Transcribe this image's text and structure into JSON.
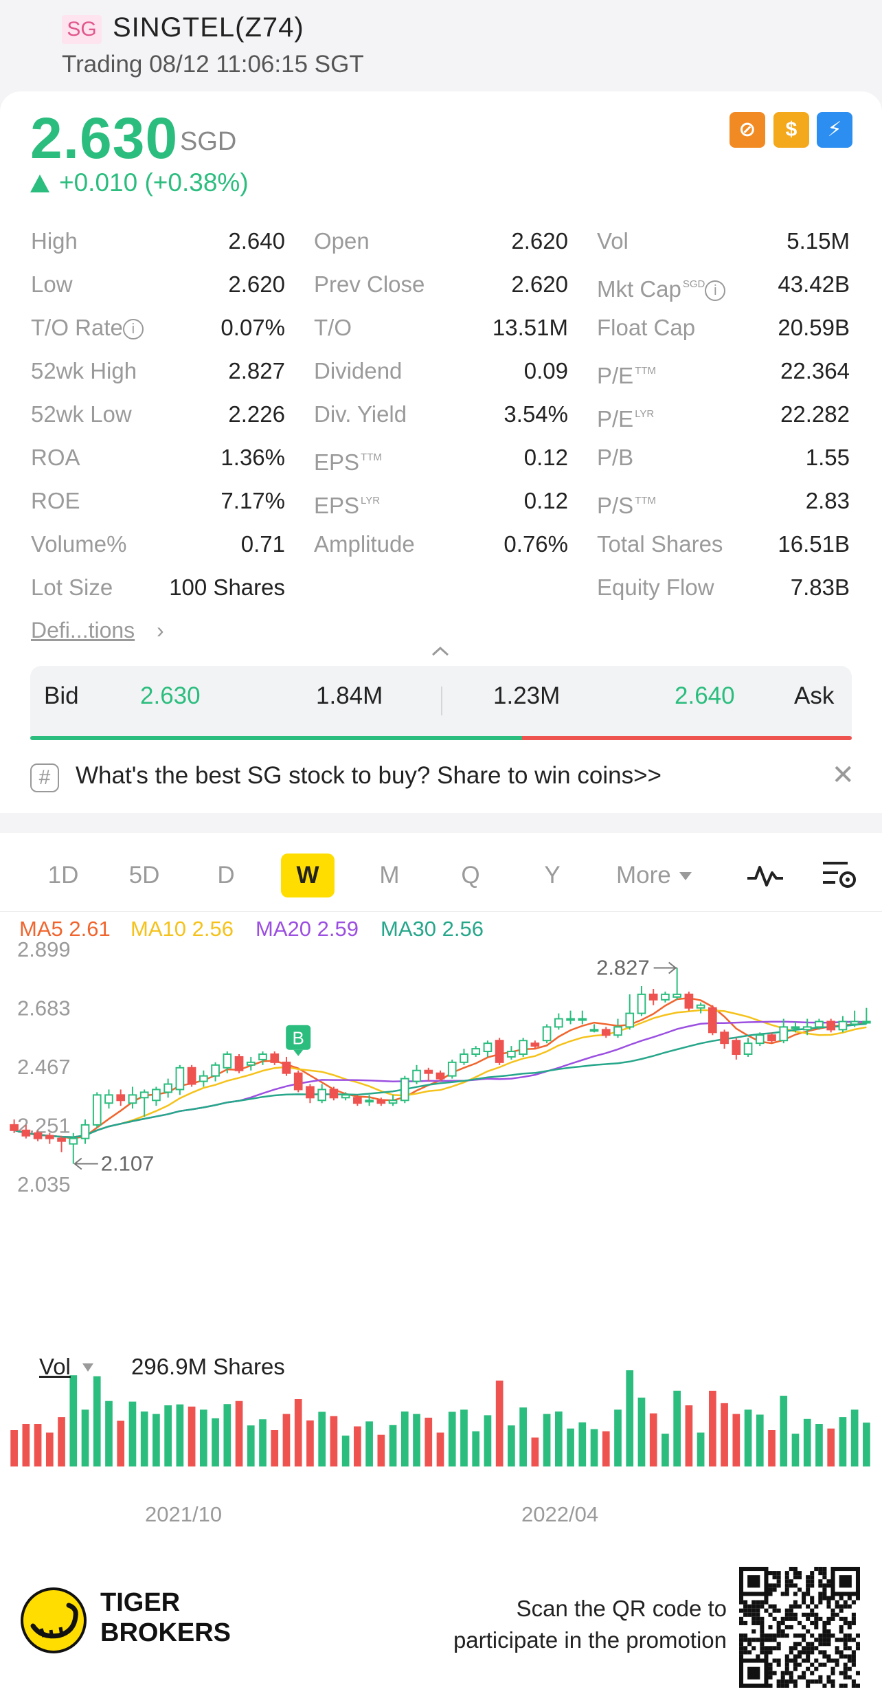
{
  "header": {
    "market_tag": "SG",
    "name": "SINGTEL(Z74)",
    "status": "Trading 08/12 11:06:15 SGT"
  },
  "quote": {
    "price": "2.630",
    "currency": "SGD",
    "change": "+0.010 (+0.38%)",
    "up_color": "#2bbd7e",
    "down_color": "#ee5350"
  },
  "stats": {
    "col1": [
      {
        "label": "High",
        "value": "2.640"
      },
      {
        "label": "Low",
        "value": "2.620"
      },
      {
        "label": "T/O Rate",
        "value": "0.07%"
      },
      {
        "label": "52wk High",
        "value": "2.827"
      },
      {
        "label": "52wk Low",
        "value": "2.226"
      },
      {
        "label": "ROA",
        "value": "1.36%"
      },
      {
        "label": "ROE",
        "value": "7.17%"
      },
      {
        "label": "Volume%",
        "value": "0.71"
      },
      {
        "label": "Lot Size",
        "value": "100 Shares"
      }
    ],
    "col2": [
      {
        "label": "Open",
        "value": "2.620"
      },
      {
        "label": "Prev Close",
        "value": "2.620"
      },
      {
        "label": "T/O",
        "value": "13.51M"
      },
      {
        "label": "Dividend",
        "value": "0.09"
      },
      {
        "label": "Div. Yield",
        "value": "3.54%"
      },
      {
        "label": "EPS",
        "sup": "TTM",
        "value": "0.12"
      },
      {
        "label": "EPS",
        "sup": "LYR",
        "value": "0.12"
      },
      {
        "label": "Amplitude",
        "value": "0.76%"
      }
    ],
    "col3": [
      {
        "label": "Vol",
        "value": "5.15M"
      },
      {
        "label": "Mkt Cap",
        "sup": "SGD",
        "value": "43.42B"
      },
      {
        "label": "Float Cap",
        "value": "20.59B"
      },
      {
        "label": "P/E",
        "sup": "TTM",
        "value": "22.364"
      },
      {
        "label": "P/E",
        "sup": "LYR",
        "value": "22.282"
      },
      {
        "label": "P/B",
        "value": "1.55"
      },
      {
        "label": "P/S",
        "sup": "TTM",
        "value": "2.83"
      },
      {
        "label": "Total Shares",
        "value": "16.51B"
      },
      {
        "label": "Equity Flow",
        "value": "7.83B"
      }
    ],
    "definitions_link": "Defi...tions"
  },
  "bidask": {
    "bid_label": "Bid",
    "bid_price": "2.630",
    "bid_size": "1.84M",
    "ask_size": "1.23M",
    "ask_price": "2.640",
    "ask_label": "Ask"
  },
  "promo": {
    "text": "What's the best SG stock to buy? Share to win coins>>"
  },
  "chart_tabs": {
    "tabs": [
      "1D",
      "5D",
      "D",
      "W",
      "M",
      "Q",
      "Y"
    ],
    "active": "W",
    "more_label": "More"
  },
  "ma_legend": [
    {
      "text": "MA5 2.61",
      "color": "#f0652e"
    },
    {
      "text": "MA10 2.56",
      "color": "#f5c21b"
    },
    {
      "text": "MA20 2.59",
      "color": "#9b4fe0"
    },
    {
      "text": "MA30 2.56",
      "color": "#26a68a"
    }
  ],
  "chart_data": {
    "type": "candlestick",
    "y_axis_labels": [
      "2.899",
      "2.683",
      "2.467",
      "2.251",
      "2.035"
    ],
    "ylim": [
      2.035,
      2.899
    ],
    "x_labels": [
      "2021/10",
      "2022/04"
    ],
    "high_annotation": "2.827",
    "low_annotation": "2.107",
    "marker_label": "B",
    "candles": [
      {
        "o": 2.25,
        "c": 2.23,
        "h": 2.27,
        "l": 2.22
      },
      {
        "o": 2.23,
        "c": 2.21,
        "h": 2.25,
        "l": 2.2
      },
      {
        "o": 2.22,
        "c": 2.2,
        "h": 2.23,
        "l": 2.19
      },
      {
        "o": 2.21,
        "c": 2.2,
        "h": 2.22,
        "l": 2.18
      },
      {
        "o": 2.2,
        "c": 2.19,
        "h": 2.21,
        "l": 2.15
      },
      {
        "o": 2.18,
        "c": 2.2,
        "h": 2.22,
        "l": 2.107
      },
      {
        "o": 2.2,
        "c": 2.25,
        "h": 2.27,
        "l": 2.18
      },
      {
        "o": 2.25,
        "c": 2.36,
        "h": 2.37,
        "l": 2.24
      },
      {
        "o": 2.33,
        "c": 2.36,
        "h": 2.38,
        "l": 2.31
      },
      {
        "o": 2.36,
        "c": 2.34,
        "h": 2.38,
        "l": 2.32
      },
      {
        "o": 2.33,
        "c": 2.36,
        "h": 2.39,
        "l": 2.31
      },
      {
        "o": 2.35,
        "c": 2.37,
        "h": 2.38,
        "l": 2.28
      },
      {
        "o": 2.34,
        "c": 2.38,
        "h": 2.39,
        "l": 2.32
      },
      {
        "o": 2.37,
        "c": 2.4,
        "h": 2.42,
        "l": 2.35
      },
      {
        "o": 2.38,
        "c": 2.46,
        "h": 2.47,
        "l": 2.36
      },
      {
        "o": 2.46,
        "c": 2.4,
        "h": 2.47,
        "l": 2.39
      },
      {
        "o": 2.41,
        "c": 2.43,
        "h": 2.45,
        "l": 2.39
      },
      {
        "o": 2.43,
        "c": 2.47,
        "h": 2.48,
        "l": 2.41
      },
      {
        "o": 2.46,
        "c": 2.51,
        "h": 2.52,
        "l": 2.44
      },
      {
        "o": 2.5,
        "c": 2.45,
        "h": 2.51,
        "l": 2.44
      },
      {
        "o": 2.47,
        "c": 2.48,
        "h": 2.5,
        "l": 2.45
      },
      {
        "o": 2.49,
        "c": 2.51,
        "h": 2.52,
        "l": 2.47
      },
      {
        "o": 2.51,
        "c": 2.48,
        "h": 2.52,
        "l": 2.47
      },
      {
        "o": 2.48,
        "c": 2.44,
        "h": 2.5,
        "l": 2.43
      },
      {
        "o": 2.44,
        "c": 2.38,
        "h": 2.45,
        "l": 2.37
      },
      {
        "o": 2.39,
        "c": 2.35,
        "h": 2.4,
        "l": 2.33
      },
      {
        "o": 2.34,
        "c": 2.38,
        "h": 2.4,
        "l": 2.33
      },
      {
        "o": 2.38,
        "c": 2.35,
        "h": 2.39,
        "l": 2.34
      },
      {
        "o": 2.35,
        "c": 2.36,
        "h": 2.37,
        "l": 2.34
      },
      {
        "o": 2.35,
        "c": 2.33,
        "h": 2.36,
        "l": 2.32
      },
      {
        "o": 2.34,
        "c": 2.34,
        "h": 2.36,
        "l": 2.32
      },
      {
        "o": 2.34,
        "c": 2.33,
        "h": 2.35,
        "l": 2.32
      },
      {
        "o": 2.33,
        "c": 2.34,
        "h": 2.36,
        "l": 2.32
      },
      {
        "o": 2.34,
        "c": 2.42,
        "h": 2.43,
        "l": 2.33
      },
      {
        "o": 2.41,
        "c": 2.45,
        "h": 2.47,
        "l": 2.4
      },
      {
        "o": 2.45,
        "c": 2.44,
        "h": 2.46,
        "l": 2.41
      },
      {
        "o": 2.44,
        "c": 2.42,
        "h": 2.45,
        "l": 2.41
      },
      {
        "o": 2.43,
        "c": 2.48,
        "h": 2.49,
        "l": 2.42
      },
      {
        "o": 2.48,
        "c": 2.51,
        "h": 2.53,
        "l": 2.47
      },
      {
        "o": 2.51,
        "c": 2.53,
        "h": 2.54,
        "l": 2.5
      },
      {
        "o": 2.52,
        "c": 2.55,
        "h": 2.56,
        "l": 2.5
      },
      {
        "o": 2.56,
        "c": 2.48,
        "h": 2.57,
        "l": 2.47
      },
      {
        "o": 2.5,
        "c": 2.52,
        "h": 2.54,
        "l": 2.49
      },
      {
        "o": 2.51,
        "c": 2.56,
        "h": 2.57,
        "l": 2.5
      },
      {
        "o": 2.55,
        "c": 2.54,
        "h": 2.56,
        "l": 2.53
      },
      {
        "o": 2.56,
        "c": 2.61,
        "h": 2.62,
        "l": 2.55
      },
      {
        "o": 2.61,
        "c": 2.64,
        "h": 2.66,
        "l": 2.6
      },
      {
        "o": 2.64,
        "c": 2.64,
        "h": 2.67,
        "l": 2.62
      },
      {
        "o": 2.64,
        "c": 2.64,
        "h": 2.67,
        "l": 2.62
      },
      {
        "o": 2.6,
        "c": 2.6,
        "h": 2.62,
        "l": 2.59
      },
      {
        "o": 2.6,
        "c": 2.58,
        "h": 2.61,
        "l": 2.57
      },
      {
        "o": 2.58,
        "c": 2.61,
        "h": 2.64,
        "l": 2.57
      },
      {
        "o": 2.61,
        "c": 2.66,
        "h": 2.73,
        "l": 2.6
      },
      {
        "o": 2.66,
        "c": 2.73,
        "h": 2.76,
        "l": 2.65
      },
      {
        "o": 2.73,
        "c": 2.71,
        "h": 2.75,
        "l": 2.69
      },
      {
        "o": 2.71,
        "c": 2.73,
        "h": 2.74,
        "l": 2.7
      },
      {
        "o": 2.72,
        "c": 2.73,
        "h": 2.827,
        "l": 2.71
      },
      {
        "o": 2.73,
        "c": 2.68,
        "h": 2.74,
        "l": 2.67
      },
      {
        "o": 2.68,
        "c": 2.69,
        "h": 2.7,
        "l": 2.66
      },
      {
        "o": 2.68,
        "c": 2.59,
        "h": 2.69,
        "l": 2.58
      },
      {
        "o": 2.59,
        "c": 2.55,
        "h": 2.6,
        "l": 2.53
      },
      {
        "o": 2.56,
        "c": 2.51,
        "h": 2.57,
        "l": 2.49
      },
      {
        "o": 2.51,
        "c": 2.55,
        "h": 2.57,
        "l": 2.5
      },
      {
        "o": 2.55,
        "c": 2.58,
        "h": 2.59,
        "l": 2.54
      },
      {
        "o": 2.58,
        "c": 2.56,
        "h": 2.59,
        "l": 2.55
      },
      {
        "o": 2.56,
        "c": 2.61,
        "h": 2.64,
        "l": 2.55
      },
      {
        "o": 2.61,
        "c": 2.61,
        "h": 2.63,
        "l": 2.59
      },
      {
        "o": 2.6,
        "c": 2.61,
        "h": 2.64,
        "l": 2.58
      },
      {
        "o": 2.61,
        "c": 2.63,
        "h": 2.64,
        "l": 2.6
      },
      {
        "o": 2.63,
        "c": 2.6,
        "h": 2.64,
        "l": 2.59
      },
      {
        "o": 2.6,
        "c": 2.63,
        "h": 2.65,
        "l": 2.59
      },
      {
        "o": 2.62,
        "c": 2.63,
        "h": 2.67,
        "l": 2.61
      },
      {
        "o": 2.63,
        "c": 2.63,
        "h": 2.68,
        "l": 2.62
      }
    ],
    "volume_label": "Vol",
    "volume_value": "296.9M Shares"
  },
  "footer": {
    "brand_line1": "TIGER",
    "brand_line2": "BROKERS",
    "scan_line1": "Scan the QR code to",
    "scan_line2": "participate in the promotion"
  }
}
